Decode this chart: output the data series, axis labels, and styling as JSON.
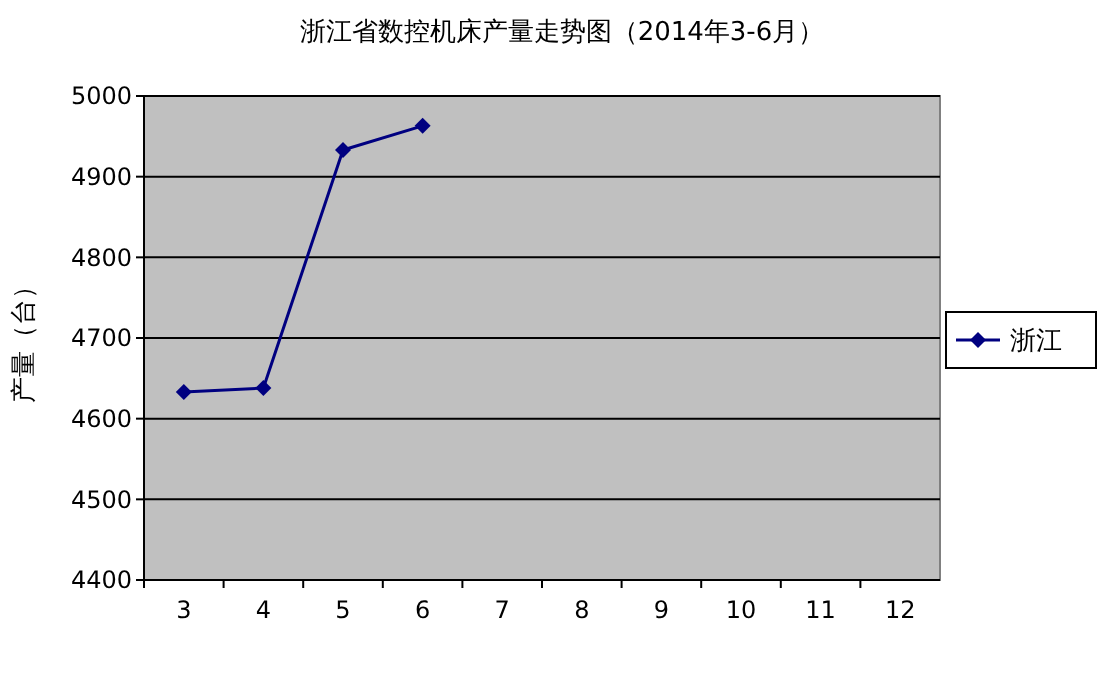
{
  "chart_data": {
    "type": "line",
    "title": "浙江省数控机床产量走势图（2014年3-6月）",
    "ylabel": "产量（台）",
    "categories": [
      "3",
      "4",
      "5",
      "6",
      "7",
      "8",
      "9",
      "10",
      "11",
      "12"
    ],
    "series": [
      {
        "name": "浙江",
        "color": "#000080",
        "values": [
          4633,
          4638,
          4933,
          4963,
          null,
          null,
          null,
          null,
          null,
          null
        ]
      }
    ],
    "ylim": [
      4400,
      5000
    ],
    "yticks": [
      4400,
      4500,
      4600,
      4700,
      4800,
      4900,
      5000
    ],
    "grid": "y",
    "legend": "right",
    "marker": "diamond"
  }
}
